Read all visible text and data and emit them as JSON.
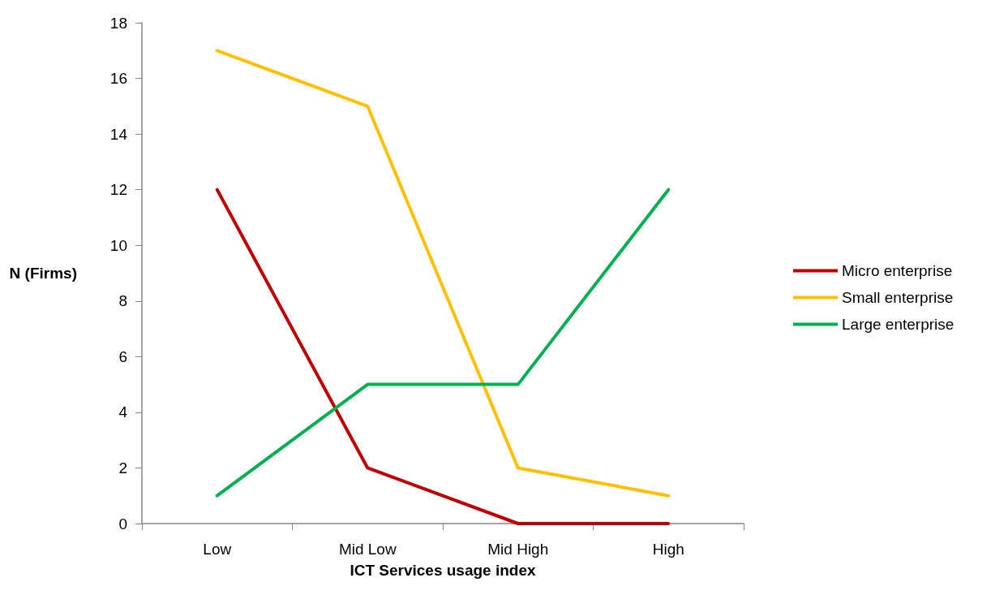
{
  "chart_data": {
    "type": "line",
    "xlabel": "ICT Services usage index",
    "ylabel": "N (Firms)",
    "categories": [
      "Low",
      "Mid Low",
      "Mid High",
      "High"
    ],
    "series": [
      {
        "name": "Micro enterprise",
        "color": "#c00000",
        "values": [
          12,
          2,
          0,
          0
        ]
      },
      {
        "name": "Small enterprise",
        "color": "#ffc000",
        "values": [
          17,
          15,
          2,
          1
        ]
      },
      {
        "name": "Large enterprise",
        "color": "#00b050",
        "values": [
          1,
          5,
          5,
          12
        ]
      }
    ],
    "ylim": [
      0,
      18
    ],
    "yticks": [
      0,
      2,
      4,
      6,
      8,
      10,
      12,
      14,
      16,
      18
    ],
    "grid": false,
    "legend": "right",
    "marker": "none",
    "line_style": "solid"
  }
}
